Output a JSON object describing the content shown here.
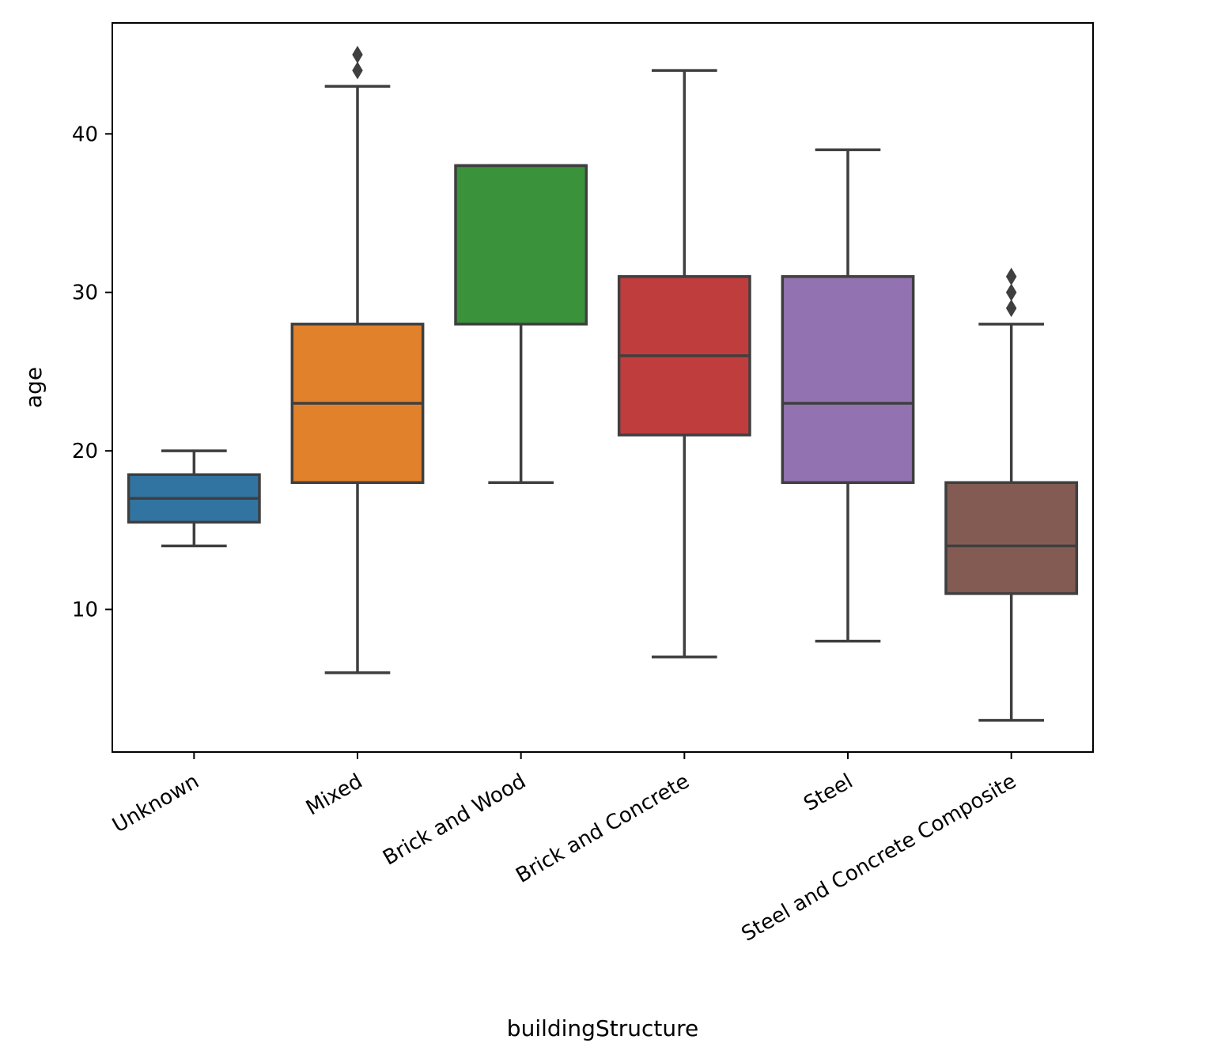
{
  "chart_data": {
    "type": "box",
    "xlabel": "buildingStructure",
    "ylabel": "age",
    "ylim": [
      1,
      47
    ],
    "yticks": [
      10,
      20,
      30,
      40
    ],
    "categories": [
      "Unknown",
      "Mixed",
      "Brick and Wood",
      "Brick and Concrete",
      "Steel",
      "Steel and Concrete Composite"
    ],
    "boxes": [
      {
        "category": "Unknown",
        "whisker_low": 14,
        "q1": 15.5,
        "median": 17,
        "q3": 18.5,
        "whisker_high": 20,
        "outliers": [],
        "color": "#3274a1"
      },
      {
        "category": "Mixed",
        "whisker_low": 6,
        "q1": 18,
        "median": 23,
        "q3": 28,
        "whisker_high": 43,
        "outliers": [
          44,
          45
        ],
        "color": "#e1812c"
      },
      {
        "category": "Brick and Wood",
        "whisker_low": 18,
        "q1": 28,
        "median": 38,
        "q3": 38,
        "whisker_high": 38,
        "outliers": [],
        "color": "#3a923a"
      },
      {
        "category": "Brick and Concrete",
        "whisker_low": 7,
        "q1": 21,
        "median": 26,
        "q3": 31,
        "whisker_high": 44,
        "outliers": [],
        "color": "#c03d3e"
      },
      {
        "category": "Steel",
        "whisker_low": 8,
        "q1": 18,
        "median": 23,
        "q3": 31,
        "whisker_high": 39,
        "outliers": [],
        "color": "#9372b2"
      },
      {
        "category": "Steel and Concrete Composite",
        "whisker_low": 3,
        "q1": 11,
        "median": 14,
        "q3": 18,
        "whisker_high": 28,
        "outliers": [
          29,
          30,
          31
        ],
        "color": "#845b53"
      }
    ],
    "line_color": "#3f3f3f",
    "grid": false,
    "legend": "none"
  }
}
